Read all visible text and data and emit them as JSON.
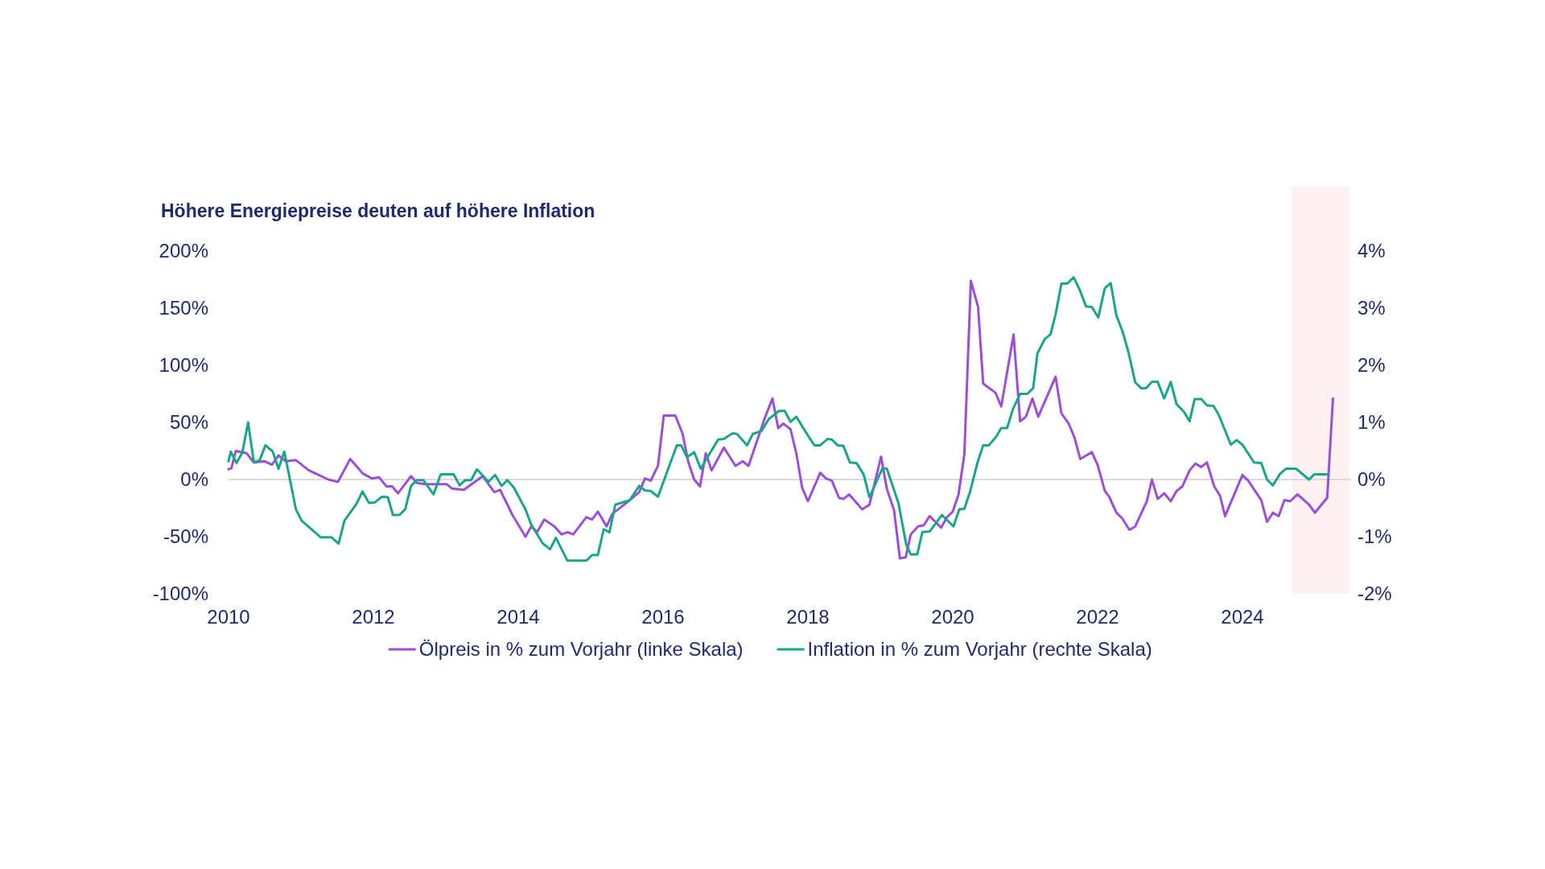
{
  "chart_data": {
    "type": "line",
    "title": "Höhere Energiepreise deuten auf höhere Inflation",
    "xlim": [
      2010,
      2025.5
    ],
    "xticks": [
      2010,
      2012,
      2014,
      2016,
      2018,
      2020,
      2022,
      2024
    ],
    "ylim": [
      -100,
      200
    ],
    "yticks": [
      {
        "value": -100,
        "label": "-100%"
      },
      {
        "value": -50,
        "label": "-50%"
      },
      {
        "value": 0,
        "label": "0%"
      },
      {
        "value": 50,
        "label": "50%"
      },
      {
        "value": 100,
        "label": "100%"
      },
      {
        "value": 150,
        "label": "150%"
      },
      {
        "value": 200,
        "label": "200%"
      }
    ],
    "y2lim": [
      -2,
      4
    ],
    "y2ticks": [
      {
        "value": -2,
        "label": "-2%"
      },
      {
        "value": -1,
        "label": "-1%"
      },
      {
        "value": 0,
        "label": "0%"
      },
      {
        "value": 1,
        "label": "1%"
      },
      {
        "value": 2,
        "label": "2%"
      },
      {
        "value": 3,
        "label": "3%"
      },
      {
        "value": 4,
        "label": "4%"
      }
    ],
    "legend": "bottom",
    "ref_lines": [
      {
        "axis": "y",
        "value": 0,
        "color": "#dcdcdc"
      }
    ],
    "bands": [
      {
        "axis": "x",
        "from": 2024.69,
        "to": 2025.48,
        "color": "#fdf1f1"
      }
    ],
    "series": [
      {
        "name": "Ölpreis in % zum Vorjahr (linke Skala)",
        "color": "#9b4fd6",
        "x": [
          2010.0,
          2010.04,
          2010.1,
          2010.25,
          2010.35,
          2010.5,
          2010.6,
          2010.69,
          2010.79,
          2010.93,
          2011.11,
          2011.38,
          2011.51,
          2011.68,
          2011.86,
          2011.98,
          2012.08,
          2012.18,
          2012.26,
          2012.34,
          2012.52,
          2012.6,
          2012.71,
          2012.83,
          2013.01,
          2013.09,
          2013.25,
          2013.51,
          2013.67,
          2013.75,
          2013.92,
          2014.1,
          2014.18,
          2014.26,
          2014.36,
          2014.5,
          2014.6,
          2014.68,
          2014.76,
          2014.94,
          2015.02,
          2015.1,
          2015.22,
          2015.3,
          2015.54,
          2015.67,
          2015.75,
          2015.83,
          2015.93,
          2016.01,
          2016.17,
          2016.27,
          2016.35,
          2016.43,
          2016.51,
          2016.59,
          2016.67,
          2016.84,
          2017.0,
          2017.1,
          2017.18,
          2017.4,
          2017.51,
          2017.59,
          2017.66,
          2017.76,
          2017.84,
          2017.92,
          2018.0,
          2018.17,
          2018.25,
          2018.33,
          2018.43,
          2018.49,
          2018.57,
          2018.75,
          2018.85,
          2019.01,
          2019.09,
          2019.19,
          2019.27,
          2019.35,
          2019.42,
          2019.52,
          2019.6,
          2019.68,
          2019.76,
          2019.84,
          2019.92,
          2020.0,
          2020.08,
          2020.16,
          2020.25,
          2020.35,
          2020.42,
          2020.59,
          2020.67,
          2020.84,
          2020.93,
          2021.01,
          2021.1,
          2021.18,
          2021.29,
          2021.42,
          2021.5,
          2021.6,
          2021.68,
          2021.76,
          2021.92,
          2022.0,
          2022.1,
          2022.16,
          2022.26,
          2022.34,
          2022.44,
          2022.52,
          2022.68,
          2022.75,
          2022.83,
          2022.92,
          2023.01,
          2023.09,
          2023.17,
          2023.27,
          2023.35,
          2023.43,
          2023.51,
          2023.61,
          2023.69,
          2023.76,
          2024.0,
          2024.08,
          2024.26,
          2024.34,
          2024.42,
          2024.5,
          2024.58,
          2024.66,
          2024.76,
          2024.92,
          2025.0,
          2025.17,
          2025.25
        ],
        "values": [
          9,
          10,
          25,
          23,
          15,
          16,
          13,
          21,
          16,
          17,
          8,
          0,
          -2,
          18,
          5,
          1,
          2,
          -6,
          -6,
          -12,
          3,
          -3,
          -4,
          -4,
          -4,
          -8,
          -9,
          3,
          -11,
          -9,
          -31,
          -50,
          -41,
          -46,
          -35,
          -41,
          -48,
          -46,
          -48,
          -33,
          -35,
          -28,
          -41,
          -30,
          -18,
          -11,
          1,
          -1,
          12,
          56,
          56,
          40,
          15,
          0,
          -6,
          23,
          8,
          28,
          12,
          16,
          12,
          53,
          71,
          45,
          49,
          44,
          23,
          -7,
          -19,
          6,
          1,
          -1,
          -16,
          -17,
          -13,
          -26,
          -22,
          20,
          -8,
          -27,
          -69,
          -68,
          -48,
          -41,
          -40,
          -32,
          -37,
          -42,
          -33,
          -28,
          -13,
          22,
          174,
          151,
          84,
          76,
          64,
          127,
          51,
          55,
          71,
          55,
          71,
          90,
          58,
          49,
          37,
          18,
          24,
          13,
          -10,
          -15,
          -29,
          -34,
          -44,
          -41,
          -19,
          0,
          -17,
          -12,
          -19,
          -10,
          -6,
          8,
          14,
          11,
          15,
          -6,
          -14,
          -32,
          4,
          -1,
          -18,
          -37,
          -29,
          -32,
          -18,
          -19,
          -13,
          -22,
          -29,
          -16,
          71
        ]
      },
      {
        "name": "Inflation in % zum Vorjahr (rechte Skala)",
        "color": "#1aa58a",
        "axis": "y2",
        "x": [
          2010.0,
          2010.03,
          2010.11,
          2010.19,
          2010.27,
          2010.35,
          2010.43,
          2010.51,
          2010.61,
          2010.69,
          2010.77,
          2010.85,
          2010.93,
          2011.01,
          2011.27,
          2011.42,
          2011.52,
          2011.6,
          2011.76,
          2011.85,
          2011.94,
          2012.02,
          2012.12,
          2012.2,
          2012.27,
          2012.36,
          2012.44,
          2012.52,
          2012.6,
          2012.69,
          2012.83,
          2012.93,
          2013.11,
          2013.19,
          2013.27,
          2013.35,
          2013.43,
          2013.59,
          2013.68,
          2013.77,
          2013.85,
          2013.94,
          2014.1,
          2014.18,
          2014.34,
          2014.44,
          2014.52,
          2014.68,
          2014.94,
          2015.02,
          2015.1,
          2015.18,
          2015.26,
          2015.34,
          2015.54,
          2015.67,
          2015.75,
          2015.83,
          2015.93,
          2016.19,
          2016.25,
          2016.33,
          2016.43,
          2016.52,
          2016.76,
          2016.84,
          2016.96,
          2017.02,
          2017.16,
          2017.24,
          2017.36,
          2017.46,
          2017.6,
          2017.68,
          2017.76,
          2017.84,
          2018.0,
          2018.09,
          2018.17,
          2018.27,
          2018.33,
          2018.41,
          2018.49,
          2018.58,
          2018.67,
          2018.77,
          2018.85,
          2019.03,
          2019.09,
          2019.25,
          2019.36,
          2019.42,
          2019.51,
          2019.58,
          2019.68,
          2019.85,
          2020.01,
          2020.09,
          2020.16,
          2020.24,
          2020.34,
          2020.42,
          2020.5,
          2020.6,
          2020.67,
          2020.75,
          2020.83,
          2020.93,
          2021.03,
          2021.11,
          2021.17,
          2021.27,
          2021.35,
          2021.42,
          2021.5,
          2021.58,
          2021.67,
          2021.76,
          2021.84,
          2021.92,
          2022.01,
          2022.1,
          2022.18,
          2022.26,
          2022.34,
          2022.42,
          2022.52,
          2022.6,
          2022.67,
          2022.75,
          2022.83,
          2022.92,
          2023.01,
          2023.09,
          2023.19,
          2023.27,
          2023.34,
          2023.43,
          2023.51,
          2023.6,
          2023.67,
          2023.84,
          2023.92,
          2024.0,
          2024.16,
          2024.26,
          2024.34,
          2024.42,
          2024.52,
          2024.6,
          2024.74,
          2024.92,
          2024.99,
          2025.19
        ],
        "values": [
          0.32,
          0.49,
          0.29,
          0.47,
          1.0,
          0.3,
          0.34,
          0.6,
          0.49,
          0.19,
          0.49,
          -0.01,
          -0.52,
          -0.72,
          -1.01,
          -1.01,
          -1.12,
          -0.72,
          -0.44,
          -0.21,
          -0.41,
          -0.4,
          -0.3,
          -0.31,
          -0.62,
          -0.62,
          -0.52,
          -0.11,
          -0.01,
          -0.01,
          -0.26,
          0.09,
          0.09,
          -0.1,
          -0.01,
          -0.01,
          0.18,
          -0.04,
          0.08,
          -0.11,
          -0.01,
          -0.14,
          -0.52,
          -0.79,
          -1.12,
          -1.22,
          -1.02,
          -1.42,
          -1.42,
          -1.32,
          -1.32,
          -0.87,
          -0.92,
          -0.44,
          -0.36,
          -0.11,
          -0.19,
          -0.2,
          -0.3,
          0.6,
          0.6,
          0.39,
          0.48,
          0.19,
          0.7,
          0.71,
          0.81,
          0.8,
          0.6,
          0.8,
          0.85,
          1.06,
          1.2,
          1.2,
          1.01,
          1.1,
          0.77,
          0.6,
          0.6,
          0.71,
          0.7,
          0.6,
          0.59,
          0.3,
          0.29,
          0.09,
          -0.31,
          0.2,
          0.19,
          -0.41,
          -1.15,
          -1.31,
          -1.31,
          -0.92,
          -0.91,
          -0.62,
          -0.82,
          -0.52,
          -0.51,
          -0.21,
          0.29,
          0.6,
          0.6,
          0.75,
          0.9,
          0.9,
          1.23,
          1.5,
          1.5,
          1.6,
          2.21,
          2.46,
          2.54,
          2.89,
          3.43,
          3.43,
          3.54,
          3.3,
          3.03,
          3.02,
          2.84,
          3.35,
          3.44,
          2.87,
          2.61,
          2.26,
          1.7,
          1.6,
          1.6,
          1.71,
          1.71,
          1.42,
          1.71,
          1.32,
          1.19,
          1.02,
          1.41,
          1.41,
          1.3,
          1.29,
          1.14,
          0.61,
          0.69,
          0.61,
          0.3,
          0.29,
          0,
          -0.1,
          0.1,
          0.19,
          0.19,
          0,
          0.09,
          0.09
        ]
      }
    ]
  }
}
